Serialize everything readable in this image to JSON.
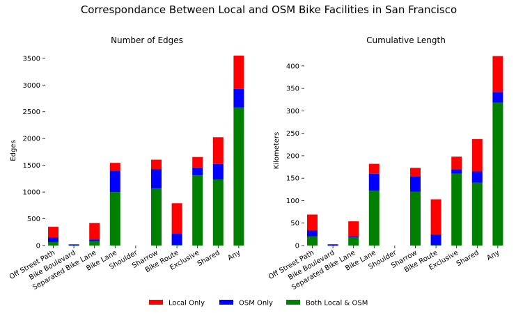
{
  "figure": {
    "title": "Correspondance Between Local and OSM Bike Facilities in San Francisco"
  },
  "legend": {
    "placement": "bottom-center",
    "items": [
      {
        "label": "Local Only",
        "color": "#ff0000"
      },
      {
        "label": "OSM Only",
        "color": "#0000ff"
      },
      {
        "label": "Both Local & OSM",
        "color": "#008000"
      }
    ]
  },
  "chart_data": [
    {
      "type": "bar",
      "stacked": true,
      "title": "Number of Edges",
      "xlabel": "",
      "ylabel": "Edges",
      "ylim": [
        0,
        3550
      ],
      "yticks": [
        0,
        500,
        1000,
        1500,
        2000,
        2500,
        3000,
        3500
      ],
      "grid": false,
      "categories": [
        "Off Street Path",
        "Bike Boulevard",
        "Separated Bike Lane",
        "Bike Lane",
        "Shoulder",
        "Sharrow",
        "Bike Route",
        "Exclusive",
        "Shared",
        "Any"
      ],
      "series": [
        {
          "name": "Both Local & OSM",
          "color": "#008000",
          "values": [
            65,
            5,
            85,
            1000,
            0,
            1070,
            10,
            1310,
            1235,
            2580
          ]
        },
        {
          "name": "OSM Only",
          "color": "#0000ff",
          "values": [
            85,
            10,
            30,
            400,
            0,
            360,
            210,
            150,
            290,
            350
          ]
        },
        {
          "name": "Local Only",
          "color": "#ff0000",
          "values": [
            200,
            10,
            305,
            145,
            0,
            175,
            570,
            195,
            500,
            620
          ]
        }
      ]
    },
    {
      "type": "bar",
      "stacked": true,
      "title": "Cumulative Length",
      "xlabel": "",
      "ylabel": "Kilometers",
      "ylim": [
        0,
        423
      ],
      "yticks": [
        0,
        50,
        100,
        150,
        200,
        250,
        300,
        350,
        400
      ],
      "grid": false,
      "categories": [
        "Off Street Path",
        "Bike Boulevard",
        "Separated Bike Lane",
        "Bike Lane",
        "Shoulder",
        "Sharrow",
        "Bike Route",
        "Exclusive",
        "Shared",
        "Any"
      ],
      "series": [
        {
          "name": "Both Local & OSM",
          "color": "#008000",
          "values": [
            20,
            0.5,
            18,
            122,
            0,
            120,
            1,
            160,
            140,
            318
          ]
        },
        {
          "name": "OSM Only",
          "color": "#0000ff",
          "values": [
            14,
            1,
            2,
            38,
            0,
            34,
            24,
            10,
            25,
            24
          ]
        },
        {
          "name": "Local Only",
          "color": "#ff0000",
          "values": [
            35,
            1.5,
            34,
            22,
            0,
            19,
            78,
            28,
            72,
            80
          ]
        }
      ]
    }
  ]
}
